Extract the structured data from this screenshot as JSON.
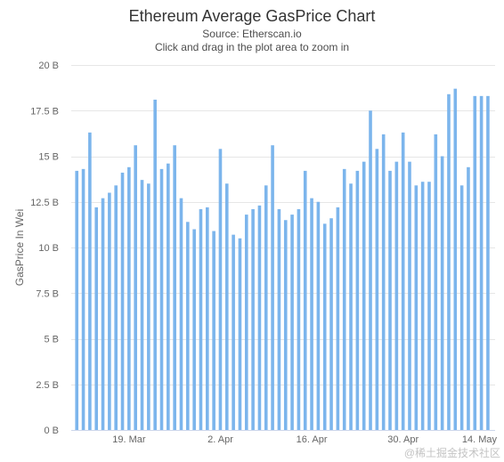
{
  "chart_data": {
    "type": "bar",
    "title": "Ethereum Average GasPrice Chart",
    "subtitle": [
      "Source: Etherscan.io",
      "Click and drag in the plot area to zoom in"
    ],
    "ylabel": "GasPrice In Wei",
    "ylim": [
      0,
      20
    ],
    "yticks": [
      0,
      2.5,
      5,
      7.5,
      10,
      12.5,
      15,
      17.5,
      20
    ],
    "ytick_labels": [
      "0 B",
      "2.5 B",
      "5 B",
      "7.5 B",
      "10 B",
      "12.5 B",
      "15 B",
      "17.5 B",
      "20 B"
    ],
    "xticks": [
      "19. Mar",
      "2. Apr",
      "16. Apr",
      "30. Apr",
      "14. May"
    ],
    "grid": true,
    "legend": false,
    "colors": {
      "bar": "#7cb5ec",
      "grid": "#e6e6e6",
      "axis": "#ccd6eb"
    },
    "x": [
      "11. Mar",
      "12. Mar",
      "13. Mar",
      "14. Mar",
      "15. Mar",
      "16. Mar",
      "17. Mar",
      "18. Mar",
      "19. Mar",
      "20. Mar",
      "21. Mar",
      "22. Mar",
      "23. Mar",
      "24. Mar",
      "25. Mar",
      "26. Mar",
      "27. Mar",
      "28. Mar",
      "29. Mar",
      "30. Mar",
      "31. Mar",
      "1. Apr",
      "2. Apr",
      "3. Apr",
      "4. Apr",
      "5. Apr",
      "6. Apr",
      "7. Apr",
      "8. Apr",
      "9. Apr",
      "10. Apr",
      "11. Apr",
      "12. Apr",
      "13. Apr",
      "14. Apr",
      "15. Apr",
      "16. Apr",
      "17. Apr",
      "18. Apr",
      "19. Apr",
      "20. Apr",
      "21. Apr",
      "22. Apr",
      "23. Apr",
      "24. Apr",
      "25. Apr",
      "26. Apr",
      "27. Apr",
      "28. Apr",
      "29. Apr",
      "30. Apr",
      "1. May",
      "2. May",
      "3. May",
      "4. May",
      "5. May",
      "6. May",
      "7. May",
      "8. May",
      "9. May",
      "10. May",
      "11. May",
      "12. May",
      "13. May"
    ],
    "values": [
      14.2,
      14.3,
      16.3,
      12.2,
      12.7,
      13.0,
      13.4,
      14.1,
      14.4,
      15.6,
      13.7,
      13.5,
      18.1,
      14.3,
      14.6,
      15.6,
      12.7,
      11.4,
      11.0,
      12.1,
      12.2,
      10.9,
      15.4,
      13.5,
      10.7,
      10.5,
      11.8,
      12.1,
      12.3,
      13.4,
      15.6,
      12.1,
      11.5,
      11.8,
      12.1,
      14.2,
      12.7,
      12.5,
      11.3,
      11.6,
      12.2,
      14.3,
      13.5,
      14.2,
      14.7,
      17.5,
      15.4,
      16.2,
      14.2,
      14.7,
      16.3,
      14.7,
      13.4,
      13.6,
      13.6,
      16.2,
      15.0,
      18.4,
      18.7,
      13.4,
      14.4,
      18.3,
      18.3,
      18.3
    ]
  },
  "watermark": "@稀土掘金技术社区"
}
